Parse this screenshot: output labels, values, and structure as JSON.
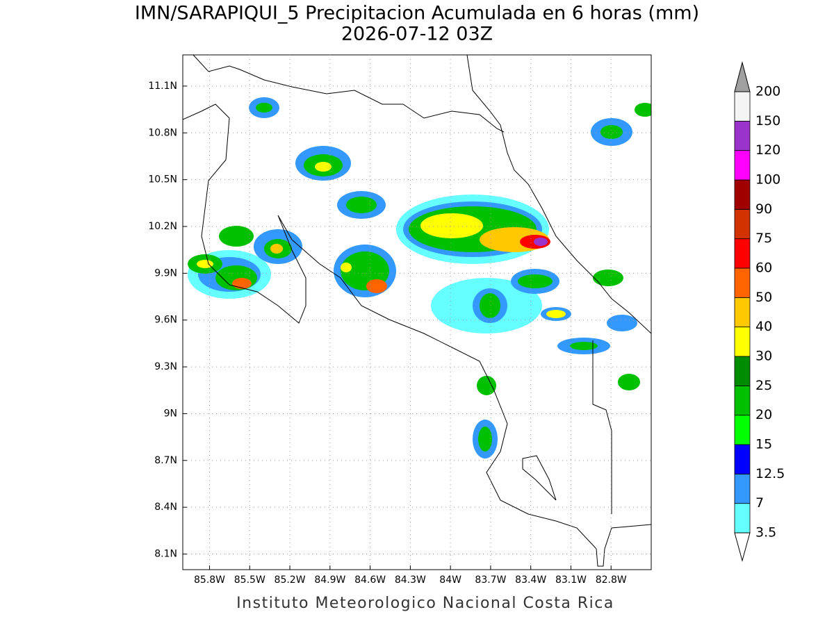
{
  "chart_data": {
    "type": "map",
    "title": "IMN/SARAPIQUI_5 Precipitacion Acumulada en 6 horas (mm)",
    "subtitle": "2026-07-12 03Z",
    "footer": "Instituto Meteorologico Nacional Costa Rica",
    "xlim": [
      -86.0,
      -82.5
    ],
    "ylim": [
      8.0,
      11.3
    ],
    "xticks": [
      {
        "value": -85.8,
        "label": "85.8W"
      },
      {
        "value": -85.5,
        "label": "85.5W"
      },
      {
        "value": -85.2,
        "label": "85.2W"
      },
      {
        "value": -84.9,
        "label": "84.9W"
      },
      {
        "value": -84.6,
        "label": "84.6W"
      },
      {
        "value": -84.3,
        "label": "84.3W"
      },
      {
        "value": -84.0,
        "label": "84W"
      },
      {
        "value": -83.7,
        "label": "83.7W"
      },
      {
        "value": -83.4,
        "label": "83.4W"
      },
      {
        "value": -83.1,
        "label": "83.1W"
      },
      {
        "value": -82.8,
        "label": "82.8W"
      }
    ],
    "yticks": [
      {
        "value": 8.1,
        "label": "8.1N"
      },
      {
        "value": 8.4,
        "label": "8.4N"
      },
      {
        "value": 8.7,
        "label": "8.7N"
      },
      {
        "value": 9,
        "label": "9N"
      },
      {
        "value": 9.3,
        "label": "9.3N"
      },
      {
        "value": 9.6,
        "label": "9.6N"
      },
      {
        "value": 9.9,
        "label": "9.9N"
      },
      {
        "value": 10.2,
        "label": "10.2N"
      },
      {
        "value": 10.5,
        "label": "10.5N"
      },
      {
        "value": 10.8,
        "label": "10.8N"
      },
      {
        "value": 11.1,
        "label": "11.1N"
      }
    ],
    "grid": true,
    "colorbar": {
      "levels": [
        3.5,
        7,
        12.5,
        15,
        20,
        25,
        30,
        40,
        50,
        60,
        75,
        90,
        100,
        120,
        150,
        200
      ],
      "colors": [
        "#66ffff",
        "#3399ff",
        "#0000ff",
        "#00ff00",
        "#00c000",
        "#008c00",
        "#ffff00",
        "#ffc800",
        "#ff6400",
        "#ff0000",
        "#d23200",
        "#a00000",
        "#ff00ff",
        "#9933cc",
        "#f4f4f4"
      ],
      "under_color": "#ffffff",
      "over_color": "#a0a0a0"
    }
  }
}
